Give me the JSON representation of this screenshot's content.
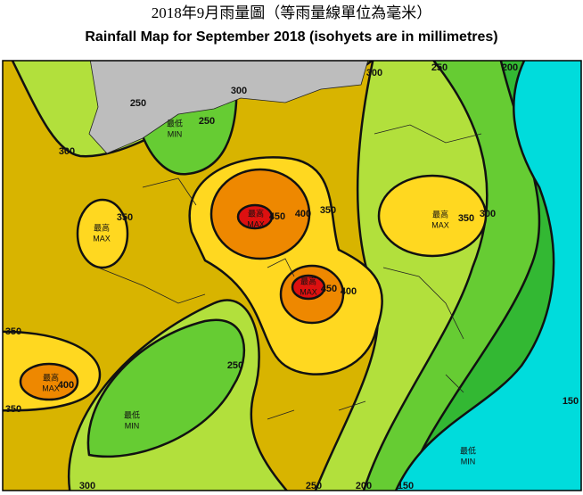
{
  "title_zh": "2018年9月雨量圖（等雨量線單位為毫米）",
  "title_en": "Rainfall Map for September 2018 (isohyets are in millimetres)",
  "contour_labels": [
    300,
    250,
    250,
    300,
    300,
    250,
    200,
    350,
    450,
    400,
    350,
    300,
    350,
    400,
    450,
    350,
    400,
    350,
    250,
    150,
    300,
    250,
    200,
    150
  ],
  "markers": [
    {
      "zh": "最低",
      "en": "MIN"
    },
    {
      "zh": "最高",
      "en": "MAX"
    },
    {
      "zh": "最高",
      "en": "MAX"
    },
    {
      "zh": "最高",
      "en": "MAX"
    },
    {
      "zh": "最高",
      "en": "MAX"
    },
    {
      "zh": "最高",
      "en": "MAX"
    },
    {
      "zh": "最低",
      "en": "MIN"
    },
    {
      "zh": "最低",
      "en": "MIN"
    }
  ]
}
